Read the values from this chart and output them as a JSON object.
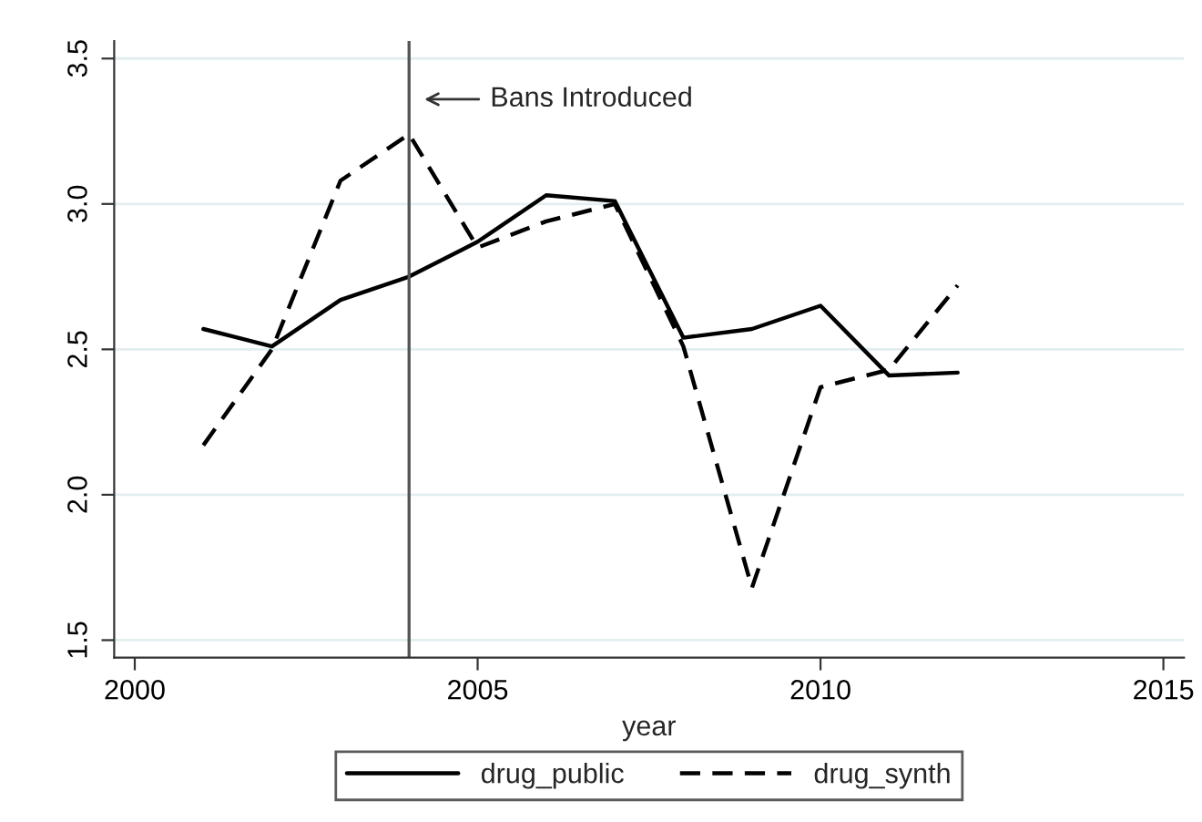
{
  "chart_data": {
    "type": "line",
    "xlabel": "year",
    "x": [
      2001,
      2002,
      2003,
      2004,
      2005,
      2006,
      2007,
      2008,
      2009,
      2010,
      2011,
      2012
    ],
    "series": [
      {
        "name": "drug_public",
        "color": "#000000",
        "line_style": "solid",
        "values": [
          2.57,
          2.51,
          2.67,
          2.75,
          2.87,
          3.03,
          3.01,
          2.54,
          2.57,
          2.65,
          2.41,
          2.42
        ]
      },
      {
        "name": "drug_synth",
        "color": "#000000",
        "line_style": "dashed",
        "values": [
          2.17,
          2.5,
          3.08,
          3.24,
          2.85,
          2.94,
          3.0,
          2.51,
          1.68,
          2.37,
          2.43,
          2.72
        ]
      }
    ],
    "xlim": [
      1999.7,
      2015.3
    ],
    "xticks": [
      2000,
      2005,
      2010,
      2015
    ],
    "ylim": [
      1.44,
      3.56
    ],
    "yticks": [
      1.5,
      {
        "value": 2,
        "label": "2.0"
      },
      2.5,
      {
        "value": 3,
        "label": "3.0"
      },
      3.5
    ],
    "ref_lines": [
      {
        "axis": "x",
        "value": 2004,
        "color": "#555555",
        "line_style": "solid"
      }
    ],
    "annotations": [
      {
        "text": "Bans Introduced",
        "x": 2004,
        "y": 3.36
      }
    ],
    "grid": "y",
    "legend": "bottom"
  }
}
